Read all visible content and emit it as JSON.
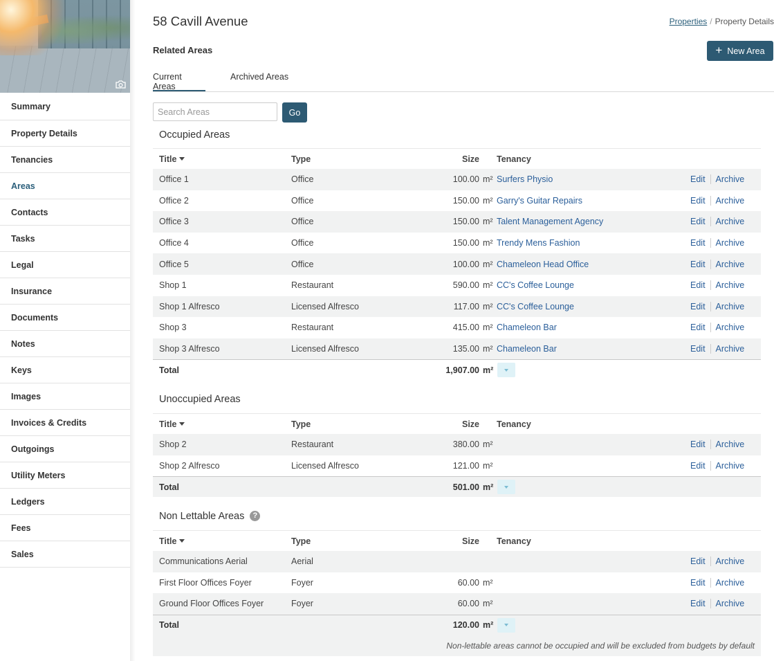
{
  "sidebar": {
    "items": [
      {
        "label": "Summary"
      },
      {
        "label": "Property Details"
      },
      {
        "label": "Tenancies"
      },
      {
        "label": "Areas",
        "active": true
      },
      {
        "label": "Contacts"
      },
      {
        "label": "Tasks"
      },
      {
        "label": "Legal"
      },
      {
        "label": "Insurance"
      },
      {
        "label": "Documents"
      },
      {
        "label": "Notes"
      },
      {
        "label": "Keys"
      },
      {
        "label": "Images"
      },
      {
        "label": "Invoices & Credits"
      },
      {
        "label": "Outgoings"
      },
      {
        "label": "Utility Meters"
      },
      {
        "label": "Ledgers"
      },
      {
        "label": "Fees"
      },
      {
        "label": "Sales"
      }
    ]
  },
  "header": {
    "title": "58 Cavill Avenue",
    "breadcrumb": {
      "parent": "Properties",
      "separator": "/",
      "current": "Property Details"
    },
    "section_heading": "Related Areas",
    "new_area_label": "New Area"
  },
  "tabs": [
    {
      "label": "Current Areas",
      "active": true
    },
    {
      "label": "Archived Areas"
    }
  ],
  "search": {
    "placeholder": "Search Areas",
    "go_label": "Go"
  },
  "columns": {
    "title": "Title",
    "type": "Type",
    "size": "Size",
    "tenancy": "Tenancy"
  },
  "actions": {
    "edit": "Edit",
    "archive": "Archive"
  },
  "unit": "m²",
  "total_label": "Total",
  "groups": [
    {
      "title": "Occupied Areas",
      "rows": [
        {
          "title": "Office 1",
          "type": "Office",
          "size": "100.00",
          "tenancy": "Surfers Physio"
        },
        {
          "title": "Office 2",
          "type": "Office",
          "size": "150.00",
          "tenancy": "Garry's Guitar Repairs"
        },
        {
          "title": "Office 3",
          "type": "Office",
          "size": "150.00",
          "tenancy": "Talent Management Agency"
        },
        {
          "title": "Office 4",
          "type": "Office",
          "size": "150.00",
          "tenancy": "Trendy Mens Fashion"
        },
        {
          "title": "Office 5",
          "type": "Office",
          "size": "100.00",
          "tenancy": "Chameleon Head Office"
        },
        {
          "title": "Shop 1",
          "type": "Restaurant",
          "size": "590.00",
          "tenancy": "CC's Coffee Lounge"
        },
        {
          "title": "Shop 1 Alfresco",
          "type": "Licensed Alfresco",
          "size": "117.00",
          "tenancy": "CC's Coffee Lounge"
        },
        {
          "title": "Shop 3",
          "type": "Restaurant",
          "size": "415.00",
          "tenancy": "Chameleon Bar"
        },
        {
          "title": "Shop 3 Alfresco",
          "type": "Licensed Alfresco",
          "size": "135.00",
          "tenancy": "Chameleon Bar"
        }
      ],
      "total": "1,907.00"
    },
    {
      "title": "Unoccupied Areas",
      "rows": [
        {
          "title": "Shop 2",
          "type": "Restaurant",
          "size": "380.00",
          "tenancy": ""
        },
        {
          "title": "Shop 2 Alfresco",
          "type": "Licensed Alfresco",
          "size": "121.00",
          "tenancy": ""
        }
      ],
      "total": "501.00"
    },
    {
      "title": "Non Lettable Areas",
      "rows": [
        {
          "title": "Communications Aerial",
          "type": "Aerial",
          "size": "",
          "tenancy": ""
        },
        {
          "title": "First Floor Offices Foyer",
          "type": "Foyer",
          "size": "60.00",
          "tenancy": ""
        },
        {
          "title": "Ground Floor Offices Foyer",
          "type": "Foyer",
          "size": "60.00",
          "tenancy": ""
        }
      ],
      "total": "120.00",
      "footnote": "Non-lettable areas cannot be occupied and will be excluded from budgets by default"
    }
  ],
  "colors": {
    "primary": "#2d5a73",
    "link": "#2b5f9a",
    "row_alt": "#f1f2f2"
  }
}
